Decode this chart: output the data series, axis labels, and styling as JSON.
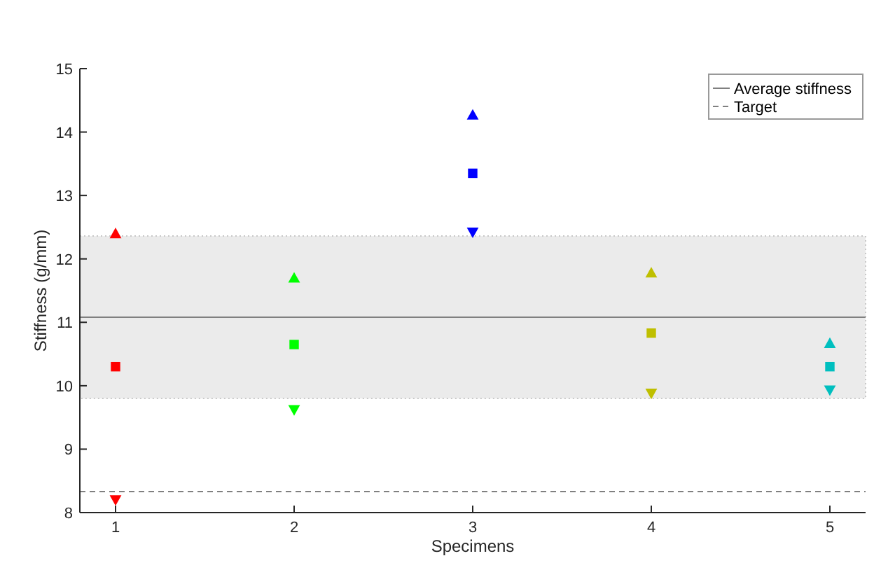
{
  "chart_data": {
    "type": "scatter",
    "xlabel": "Specimens",
    "ylabel": "Stiffness (g/mm)",
    "x": [
      1,
      2,
      3,
      4,
      5
    ],
    "series": [
      {
        "colors": [
          "#ff0000",
          "#00ff00",
          "#0000ff",
          "#bfbf00",
          "#00bfbf"
        ],
        "marker": "triangle",
        "values": [
          12.4,
          11.7,
          14.27,
          11.78,
          10.67
        ]
      },
      {
        "colors": [
          "#ff0000",
          "#00ff00",
          "#0000ff",
          "#bfbf00",
          "#00bfbf"
        ],
        "marker": "square",
        "values": [
          10.3,
          10.65,
          13.35,
          10.83,
          10.3
        ]
      },
      {
        "colors": [
          "#ff0000",
          "#00ff00",
          "#0000ff",
          "#bfbf00",
          "#00bfbf"
        ],
        "marker": "triangle-down",
        "values": [
          8.2,
          9.62,
          12.42,
          9.88,
          9.93
        ]
      }
    ],
    "xlim": [
      0.8,
      5.2
    ],
    "xticks": [
      1,
      2,
      3,
      4,
      5
    ],
    "ylim": [
      8,
      15
    ],
    "yticks": [
      8,
      9,
      10,
      11,
      12,
      13,
      14,
      15
    ],
    "ref_lines": [
      {
        "axis": "y",
        "value": 11.08,
        "label": "Average stiffness",
        "color": "#808080",
        "line_style": "solid"
      },
      {
        "axis": "y",
        "value": 8.33,
        "label": "Target",
        "color": "#808080",
        "line_style": "dashed"
      }
    ],
    "bands": [
      {
        "axis": "y",
        "from": 9.8,
        "to": 12.36,
        "color": "#ebebeb"
      }
    ],
    "grid": false,
    "legend": "top right"
  }
}
